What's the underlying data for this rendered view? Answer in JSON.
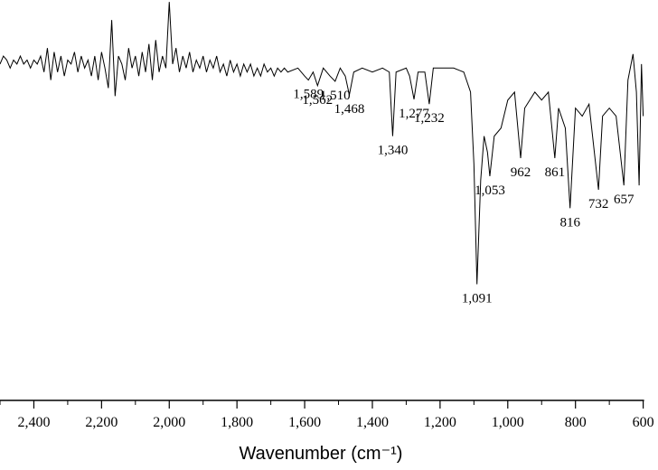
{
  "chart_data": {
    "type": "line",
    "xlabel": "Wavenumber (cm⁻¹)",
    "xlim": [
      2500,
      600
    ],
    "ylim": [
      0,
      100
    ],
    "xticks": [
      {
        "value": 2400,
        "label": "2,400"
      },
      {
        "value": 2200,
        "label": "2,200"
      },
      {
        "value": 2000,
        "label": "2,000"
      },
      {
        "value": 1800,
        "label": "1,800"
      },
      {
        "value": 1600,
        "label": "1,600"
      },
      {
        "value": 1400,
        "label": "1,400"
      },
      {
        "value": 1200,
        "label": "1,200"
      },
      {
        "value": 1000,
        "label": "1,000"
      },
      800,
      600
    ],
    "xminorticks": [
      2500,
      2300,
      2100,
      1900,
      1700,
      1500,
      1300,
      1100,
      900,
      700
    ],
    "color": "#000000",
    "x": [
      2500,
      2490,
      2480,
      2470,
      2460,
      2450,
      2440,
      2430,
      2420,
      2410,
      2400,
      2390,
      2380,
      2370,
      2360,
      2350,
      2340,
      2330,
      2320,
      2310,
      2300,
      2290,
      2280,
      2270,
      2260,
      2250,
      2240,
      2230,
      2220,
      2210,
      2200,
      2190,
      2180,
      2170,
      2160,
      2150,
      2140,
      2130,
      2120,
      2110,
      2100,
      2090,
      2080,
      2070,
      2060,
      2050,
      2040,
      2030,
      2020,
      2010,
      2000,
      1990,
      1980,
      1970,
      1960,
      1950,
      1940,
      1930,
      1920,
      1910,
      1900,
      1890,
      1880,
      1870,
      1860,
      1850,
      1840,
      1830,
      1820,
      1810,
      1800,
      1790,
      1780,
      1770,
      1760,
      1750,
      1740,
      1730,
      1720,
      1710,
      1700,
      1690,
      1680,
      1670,
      1660,
      1650,
      1620,
      1600,
      1589,
      1575,
      1562,
      1545,
      1525,
      1510,
      1495,
      1480,
      1468,
      1455,
      1430,
      1400,
      1370,
      1350,
      1340,
      1330,
      1300,
      1290,
      1277,
      1265,
      1245,
      1232,
      1220,
      1200,
      1160,
      1130,
      1110,
      1100,
      1091,
      1080,
      1070,
      1060,
      1053,
      1040,
      1020,
      1000,
      980,
      962,
      950,
      920,
      900,
      880,
      861,
      850,
      830,
      816,
      800,
      780,
      760,
      732,
      720,
      700,
      680,
      657,
      645,
      630,
      620,
      612,
      605,
      600
    ],
    "values": [
      84,
      86,
      85,
      83,
      85,
      84,
      86,
      84,
      85,
      83,
      85,
      84,
      86,
      82,
      88,
      80,
      87,
      82,
      86,
      81,
      85,
      84,
      87,
      82,
      86,
      83,
      85,
      81,
      86,
      80,
      87,
      83,
      78,
      95,
      76,
      86,
      84,
      80,
      88,
      83,
      86,
      81,
      87,
      82,
      89,
      80,
      90,
      82,
      86,
      83,
      99.5,
      84,
      88,
      82,
      86,
      83,
      87,
      82,
      85,
      83,
      86,
      82,
      85,
      83,
      86,
      82,
      84,
      81,
      85,
      82,
      84,
      81,
      84,
      82,
      84,
      81,
      83,
      81,
      84,
      82,
      83,
      81,
      83,
      82,
      83,
      82,
      83,
      81,
      80,
      82,
      78.6,
      83,
      81,
      79.7,
      83,
      81,
      76.3,
      82,
      83,
      82,
      83,
      82,
      66,
      82,
      83,
      81,
      75.2,
      82,
      82,
      74,
      83,
      83,
      83,
      82,
      77,
      59,
      29,
      55,
      66,
      62,
      56,
      66,
      68,
      75,
      77,
      60.5,
      73,
      77,
      75,
      77,
      60.5,
      73,
      68,
      48,
      73,
      71,
      74,
      52.6,
      71,
      73,
      71,
      53.7,
      80,
      86.5,
      77,
      53.7,
      84,
      71
    ],
    "annotations": [
      {
        "label": "1,589",
        "x": 1589
      },
      {
        "label": "1,562",
        "x": 1562
      },
      {
        "label": "1,510",
        "x": 1510
      },
      {
        "label": "1,468",
        "x": 1468
      },
      {
        "label": "1,340",
        "x": 1340
      },
      {
        "label": "1,277",
        "x": 1277
      },
      {
        "label": "1,232",
        "x": 1232
      },
      {
        "label": "1,091",
        "x": 1091
      },
      {
        "label": "1,053",
        "x": 1053
      },
      {
        "label": "962",
        "x": 962
      },
      {
        "label": "861",
        "x": 861
      },
      {
        "label": "816",
        "x": 816
      },
      {
        "label": "732",
        "x": 732
      },
      {
        "label": "657",
        "x": 657
      }
    ]
  }
}
